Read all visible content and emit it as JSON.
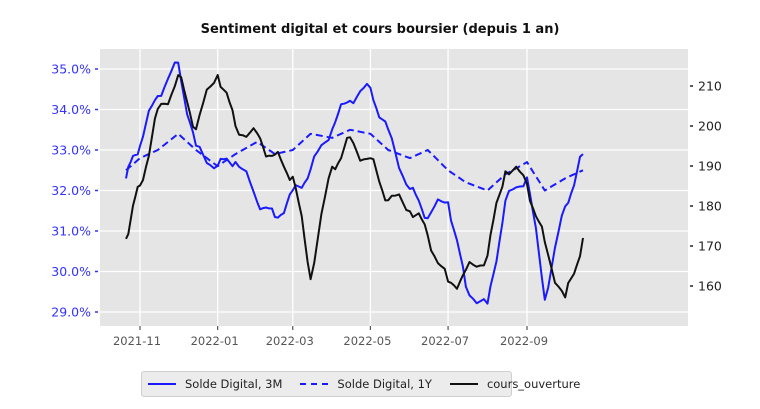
{
  "chart_data": {
    "type": "line",
    "title": "Sentiment digital et cours boursier (depuis 1 an)",
    "xlabel": "",
    "ylabel_left": "",
    "ylabel_right": "",
    "x_tick_labels": [
      "2021-11",
      "2022-01",
      "2022-03",
      "2022-05",
      "2022-07",
      "2022-09"
    ],
    "y_left_tick_labels": [
      "35.0%",
      "34.0%",
      "33.0%",
      "32.0%",
      "31.0%",
      "30.0%",
      "29.0%"
    ],
    "y_left_ticks": [
      35.0,
      34.0,
      33.0,
      32.0,
      31.0,
      30.0,
      29.0
    ],
    "y_right_ticks": [
      210,
      200,
      190,
      180,
      170,
      160
    ],
    "ylim_left": [
      28.6,
      35.5
    ],
    "ylim_right": [
      152,
      218
    ],
    "grid": true,
    "legend_position": "bottom-center (outside)",
    "x": [
      "2021-10-21",
      "2021-11-01",
      "2021-11-15",
      "2021-12-01",
      "2021-12-15",
      "2022-01-01",
      "2022-01-15",
      "2022-02-01",
      "2022-02-15",
      "2022-03-01",
      "2022-03-15",
      "2022-04-01",
      "2022-04-15",
      "2022-05-01",
      "2022-05-15",
      "2022-06-01",
      "2022-06-15",
      "2022-07-01",
      "2022-07-15",
      "2022-08-01",
      "2022-08-15",
      "2022-09-01",
      "2022-09-15",
      "2022-10-01",
      "2022-10-15"
    ],
    "series": [
      {
        "name": "Solde Digital, 3M",
        "axis": "left",
        "color": "#1a1aff",
        "style": "solid",
        "values": [
          32.3,
          33.2,
          34.4,
          35.1,
          33.0,
          32.6,
          32.8,
          31.8,
          31.3,
          31.9,
          32.5,
          33.6,
          34.3,
          34.5,
          33.4,
          32.0,
          31.4,
          31.8,
          29.6,
          29.1,
          31.7,
          32.4,
          29.4,
          31.6,
          32.9
        ]
      },
      {
        "name": "Solde Digital, 1Y",
        "axis": "left",
        "color": "#1a1aff",
        "style": "dashed",
        "values": [
          32.5,
          32.8,
          33.0,
          33.4,
          33.0,
          32.6,
          32.9,
          33.2,
          32.9,
          33.0,
          33.4,
          33.3,
          33.5,
          33.4,
          33.0,
          32.8,
          33.0,
          32.5,
          32.2,
          32.0,
          32.4,
          32.7,
          32.0,
          32.3,
          32.5
        ]
      },
      {
        "name": "cours_ouverture",
        "axis": "right",
        "color": "#111111",
        "style": "solid",
        "values": [
          173,
          185,
          203,
          212,
          200,
          214,
          200,
          197,
          192,
          188,
          163,
          190,
          196,
          191,
          182,
          180,
          173,
          160,
          163,
          168,
          190,
          186,
          170,
          156,
          172
        ]
      }
    ]
  },
  "legend": {
    "items": [
      {
        "label": "Solde Digital, 3M",
        "color": "#1a1aff",
        "style": "solid"
      },
      {
        "label": "Solde Digital, 1Y",
        "color": "#1a1aff",
        "style": "dashed"
      },
      {
        "label": "cours_ouverture",
        "color": "#111111",
        "style": "solid"
      }
    ]
  },
  "colors": {
    "plot_bg": "#e5e5e5",
    "grid": "#ffffff",
    "left_axis_text": "#3333ff",
    "right_axis_text": "#222222"
  }
}
